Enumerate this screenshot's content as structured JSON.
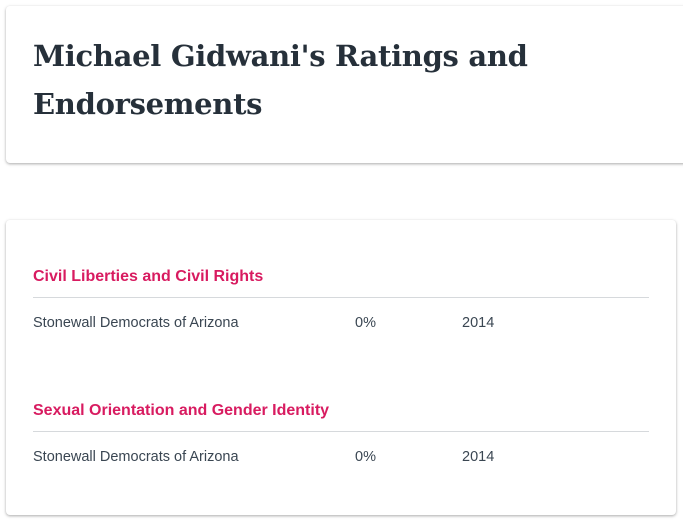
{
  "page": {
    "title": "Michael Gidwani's Ratings and Endorsements"
  },
  "ratings": {
    "sections": [
      {
        "heading": "Civil Liberties and Civil Rights",
        "rows": [
          {
            "organization": "Stonewall Democrats of Arizona",
            "score": "0%",
            "year": "2014"
          }
        ]
      },
      {
        "heading": "Sexual Orientation and Gender Identity",
        "rows": [
          {
            "organization": "Stonewall Democrats of Arizona",
            "score": "0%",
            "year": "2014"
          }
        ]
      }
    ]
  },
  "colors": {
    "heading_accent": "#d81b60",
    "title_text": "#26303a",
    "body_text": "#3a4652"
  }
}
